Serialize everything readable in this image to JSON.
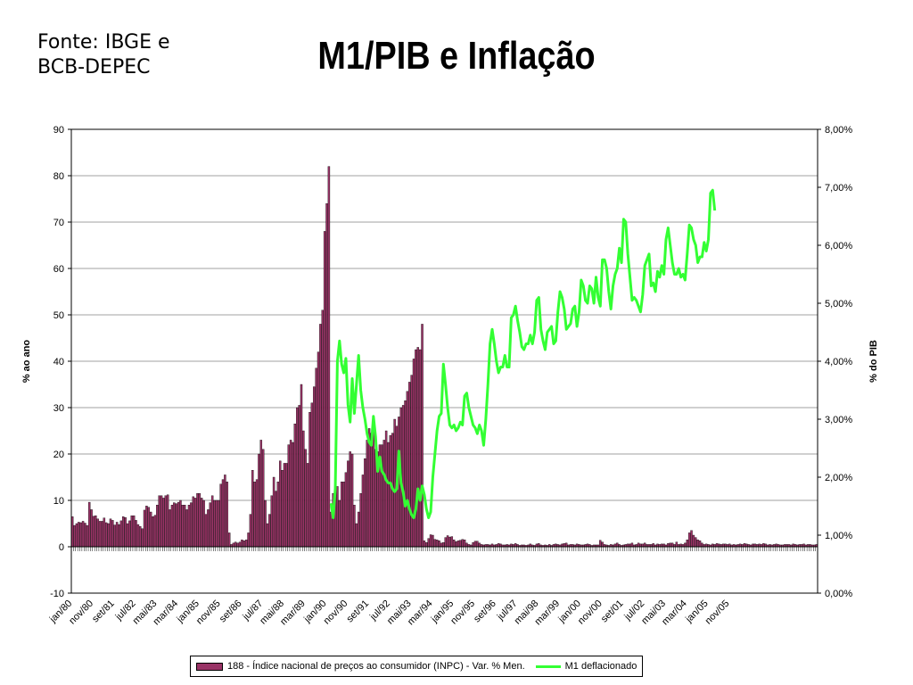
{
  "header": {
    "source_line1": "Fonte: IBGE e",
    "source_line2": "BCB-DEPEC",
    "title": "M1/PIB e Inflação"
  },
  "chart_data": {
    "type": "bar+line",
    "title": "M1/PIB e Inflação",
    "left_axis": {
      "label": "% ao ano",
      "ylim": [
        -10,
        90
      ],
      "ticks": [
        "-10",
        "0",
        "10",
        "20",
        "30",
        "40",
        "50",
        "60",
        "70",
        "80",
        "90"
      ]
    },
    "right_axis": {
      "label": "% do PIB",
      "ylim": [
        0,
        8
      ],
      "ticks": [
        "0,00%",
        "1,00%",
        "2,00%",
        "3,00%",
        "4,00%",
        "5,00%",
        "6,00%",
        "7,00%",
        "8,00%"
      ]
    },
    "x_tick_labels": [
      "jan/80",
      "nov/80",
      "set/81",
      "jul/82",
      "mai/83",
      "mar/84",
      "jan/85",
      "nov/85",
      "set/86",
      "jul/87",
      "mai/88",
      "mar/89",
      "jan/90",
      "nov/90",
      "set/91",
      "jul/92",
      "mai/93",
      "mar/94",
      "jan/95",
      "nov/95",
      "set/96",
      "jul/97",
      "mai/98",
      "mar/99",
      "jan/00",
      "nov/00",
      "set/01",
      "jul/02",
      "mai/03",
      "mar/04",
      "jan/05",
      "nov/05"
    ],
    "grid": true,
    "legend_position": "bottom",
    "colors": {
      "bars": "#993366",
      "line": "#33ff33"
    },
    "series": [
      {
        "name": "188 - Índice nacional de preços ao consumidor (INPC) - Var. % Men.",
        "axis": "left",
        "type": "bar",
        "values": [
          6.5,
          4.6,
          5.0,
          5.3,
          5.2,
          5.5,
          5.1,
          4.6,
          9.6,
          8.0,
          6.6,
          6.7,
          6.0,
          5.5,
          5.5,
          6.2,
          5.2,
          5.0,
          6.0,
          5.7,
          4.7,
          5.3,
          4.8,
          5.6,
          6.5,
          6.3,
          5.0,
          5.6,
          6.7,
          6.7,
          5.7,
          4.8,
          4.4,
          3.9,
          7.9,
          8.8,
          8.5,
          7.5,
          6.5,
          6.8,
          9.0,
          11.0,
          11.0,
          10.5,
          11.0,
          11.2,
          8.0,
          9.0,
          9.5,
          9.3,
          9.6,
          10.0,
          9.0,
          9.0,
          8.0,
          9.0,
          9.5,
          10.8,
          10.5,
          11.5,
          11.5,
          10.5,
          10.0,
          7.0,
          8.0,
          9.5,
          11.0,
          10.0,
          10.0,
          10.0,
          13.5,
          14.5,
          15.5,
          14.0,
          3.0,
          0.5,
          0.8,
          1.0,
          0.8,
          1.0,
          1.5,
          1.3,
          1.5,
          3.0,
          7.0,
          16.5,
          14.0,
          14.5,
          20.0,
          23.0,
          21.0,
          10.0,
          5.0,
          7.0,
          11.0,
          15.0,
          12.0,
          14.0,
          18.5,
          16.5,
          18.0,
          18.0,
          22.0,
          23.0,
          22.5,
          26.5,
          30.0,
          30.5,
          35.0,
          25.0,
          21.0,
          18.0,
          29.0,
          31.0,
          34.5,
          38.5,
          42.0,
          48.0,
          51.0,
          68.0,
          74.0,
          82.0,
          7.5,
          11.5,
          12.5,
          13.0,
          10.0,
          14.0,
          14.0,
          16.0,
          18.5,
          20.5,
          20.0,
          9.0,
          5.0,
          7.5,
          11.5,
          15.5,
          19.0,
          23.0,
          25.5,
          24.5,
          26.0,
          21.0,
          20.5,
          22.0,
          22.0,
          23.0,
          25.0,
          22.5,
          24.0,
          24.5,
          27.5,
          26.0,
          28.0,
          30.0,
          30.5,
          31.5,
          33.5,
          35.5,
          37.0,
          40.5,
          42.5,
          43.0,
          42.5,
          48.0,
          1.3,
          0.9,
          1.8,
          2.6,
          2.5,
          1.6,
          1.5,
          1.3,
          0.8,
          0.9,
          2.0,
          2.4,
          2.1,
          2.2,
          1.5,
          1.1,
          1.3,
          1.4,
          1.6,
          1.5,
          0.8,
          0.5,
          0.4,
          0.9,
          1.2,
          1.2,
          0.8,
          0.5,
          0.4,
          0.5,
          0.5,
          0.4,
          0.6,
          0.4,
          0.5,
          0.7,
          0.6,
          0.4,
          0.4,
          0.5,
          0.4,
          0.6,
          0.5,
          0.7,
          0.5,
          0.3,
          0.4,
          0.4,
          0.3,
          0.4,
          0.6,
          0.4,
          0.3,
          0.6,
          0.7,
          0.4,
          0.3,
          0.4,
          0.3,
          0.5,
          0.3,
          0.5,
          0.6,
          0.5,
          0.4,
          0.6,
          0.7,
          0.8,
          0.4,
          0.5,
          0.5,
          0.4,
          0.6,
          0.5,
          0.4,
          0.4,
          0.5,
          0.6,
          0.5,
          0.3,
          0.4,
          0.4,
          0.4,
          1.4,
          1.0,
          0.5,
          0.4,
          0.3,
          0.5,
          0.4,
          0.6,
          0.8,
          0.5,
          0.3,
          0.4,
          0.5,
          0.6,
          0.6,
          0.8,
          0.4,
          0.5,
          0.8,
          0.6,
          0.6,
          0.8,
          0.5,
          0.5,
          0.5,
          0.7,
          0.4,
          0.6,
          0.5,
          0.6,
          0.6,
          0.4,
          0.7,
          0.8,
          0.8,
          0.5,
          1.0,
          0.5,
          0.6,
          0.5,
          0.8,
          1.5,
          3.0,
          3.5,
          2.5,
          2.0,
          1.5,
          1.3,
          0.8,
          0.5,
          0.6,
          0.5,
          0.4,
          0.6,
          0.5,
          0.7,
          0.6,
          0.5,
          0.6,
          0.6,
          0.5,
          0.6,
          0.4,
          0.5,
          0.4,
          0.5,
          0.6,
          0.5,
          0.7,
          0.6,
          0.5,
          0.4,
          0.6,
          0.6,
          0.5,
          0.6,
          0.5,
          0.7,
          0.6,
          0.4,
          0.5,
          0.4,
          0.5,
          0.6,
          0.5,
          0.4,
          0.4,
          0.5,
          0.5,
          0.5,
          0.4,
          0.6,
          0.5,
          0.4,
          0.5,
          0.5,
          0.6,
          0.4,
          0.5,
          0.5,
          0.4,
          0.4,
          0.5
        ]
      },
      {
        "name": "M1 deflacionado",
        "axis": "right",
        "type": "line",
        "start_index": 122,
        "values": [
          1.55,
          1.3,
          1.8,
          4.0,
          4.35,
          3.95,
          3.8,
          4.05,
          3.25,
          2.95,
          3.7,
          3.1,
          3.6,
          4.1,
          3.5,
          3.2,
          3.0,
          2.75,
          2.6,
          2.55,
          3.05,
          2.7,
          2.1,
          2.35,
          2.1,
          2.05,
          1.95,
          1.9,
          1.9,
          1.8,
          1.75,
          1.8,
          2.45,
          1.9,
          1.75,
          1.5,
          1.6,
          1.45,
          1.35,
          1.3,
          1.45,
          1.8,
          1.6,
          1.85,
          1.7,
          1.45,
          1.3,
          1.4,
          2.0,
          2.4,
          2.8,
          3.05,
          3.1,
          3.95,
          3.6,
          3.2,
          2.9,
          2.85,
          2.9,
          2.8,
          2.85,
          2.95,
          2.9,
          3.4,
          3.45,
          3.2,
          3.05,
          2.9,
          2.85,
          2.75,
          2.9,
          2.8,
          2.55,
          3.0,
          3.6,
          4.3,
          4.55,
          4.3,
          4.0,
          3.8,
          3.9,
          3.9,
          4.1,
          3.9,
          3.9,
          4.75,
          4.8,
          4.95,
          4.7,
          4.5,
          4.25,
          4.2,
          4.3,
          4.3,
          4.45,
          4.3,
          4.5,
          5.05,
          5.1,
          4.55,
          4.35,
          4.2,
          4.5,
          4.55,
          4.6,
          4.3,
          4.35,
          4.85,
          5.2,
          5.1,
          4.9,
          4.55,
          4.6,
          4.65,
          4.9,
          4.95,
          4.6,
          4.85,
          5.4,
          5.3,
          5.05,
          5.0,
          5.3,
          5.25,
          5.0,
          5.45,
          5.1,
          4.95,
          5.75,
          5.75,
          5.6,
          5.2,
          4.9,
          5.3,
          5.5,
          5.6,
          5.95,
          5.7,
          6.45,
          6.4,
          5.85,
          5.45,
          5.05,
          5.1,
          5.05,
          4.95,
          4.85,
          5.15,
          5.65,
          5.75,
          5.85,
          5.3,
          5.35,
          5.2,
          5.55,
          5.45,
          5.65,
          5.5,
          6.1,
          6.3,
          6.0,
          5.7,
          5.5,
          5.5,
          5.6,
          5.45,
          5.5,
          5.4,
          5.85,
          6.35,
          6.3,
          6.1,
          6.0,
          5.7,
          5.8,
          5.8,
          6.05,
          5.9,
          6.1,
          6.9,
          6.95,
          6.6
        ]
      }
    ]
  }
}
